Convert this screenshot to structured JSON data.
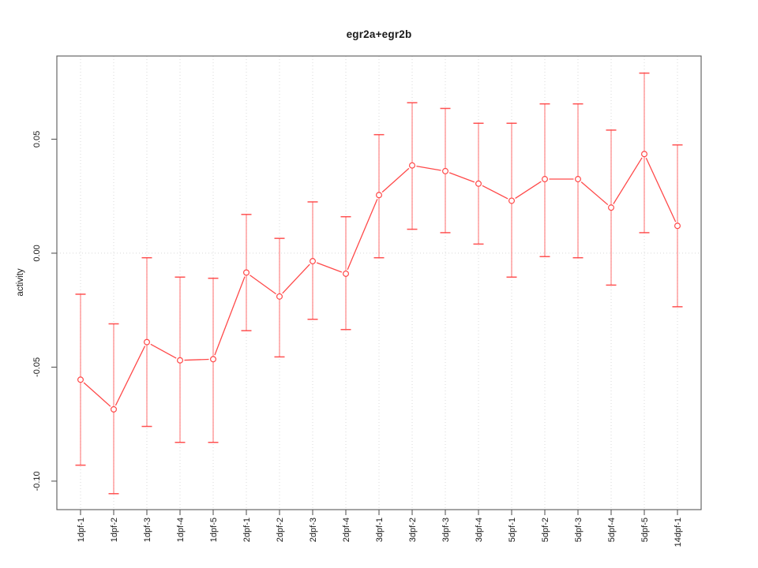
{
  "title": "egr2a+egr2b",
  "chart_data": {
    "type": "line",
    "title": "egr2a+egr2b",
    "xlabel": "",
    "ylabel": "activity",
    "marker": "open-circle",
    "legend": null,
    "categories": [
      "1dpf-1",
      "1dpf-2",
      "1dpf-3",
      "1dpf-4",
      "1dpf-5",
      "2dpf-1",
      "2dpf-2",
      "2dpf-3",
      "2dpf-4",
      "3dpf-1",
      "3dpf-2",
      "3dpf-3",
      "3dpf-4",
      "5dpf-1",
      "5dpf-2",
      "5dpf-3",
      "5dpf-4",
      "5dpf-5",
      "14dpf-1"
    ],
    "series": [
      {
        "name": "activity",
        "values": [
          -0.0555,
          -0.0685,
          -0.039,
          -0.047,
          -0.0465,
          -0.0085,
          -0.019,
          -0.0035,
          -0.009,
          0.0255,
          0.0385,
          0.036,
          0.0305,
          0.023,
          0.0325,
          0.0325,
          0.02,
          0.0435,
          0.012
        ],
        "error_low": [
          -0.093,
          -0.1055,
          -0.076,
          -0.083,
          -0.083,
          -0.034,
          -0.0455,
          -0.029,
          -0.0335,
          -0.002,
          0.0105,
          0.009,
          0.004,
          -0.0105,
          -0.0015,
          -0.002,
          -0.014,
          0.009,
          -0.0235
        ],
        "error_high": [
          -0.018,
          -0.031,
          -0.002,
          -0.0105,
          -0.011,
          0.017,
          0.0065,
          0.0225,
          0.016,
          0.052,
          0.066,
          0.0635,
          0.057,
          0.057,
          0.0655,
          0.0655,
          0.054,
          0.079,
          0.0475
        ]
      }
    ],
    "ylim": [
      -0.1125,
      0.0865
    ],
    "yticks": [
      -0.1,
      -0.05,
      0.0,
      0.05
    ],
    "ytick_labels": [
      "-0.10",
      "-0.05",
      "0.00",
      "0.05"
    ],
    "grid": {
      "vertical_dotted_per_category": true,
      "horizontal_dotted_at": [
        0
      ]
    },
    "colors": {
      "series": "#ff4040",
      "error_bar": "#ff6060",
      "grid": "#d8d8d8",
      "axis": "#5a5a5a",
      "text": "#1a1a1a",
      "background": "#ffffff"
    }
  }
}
